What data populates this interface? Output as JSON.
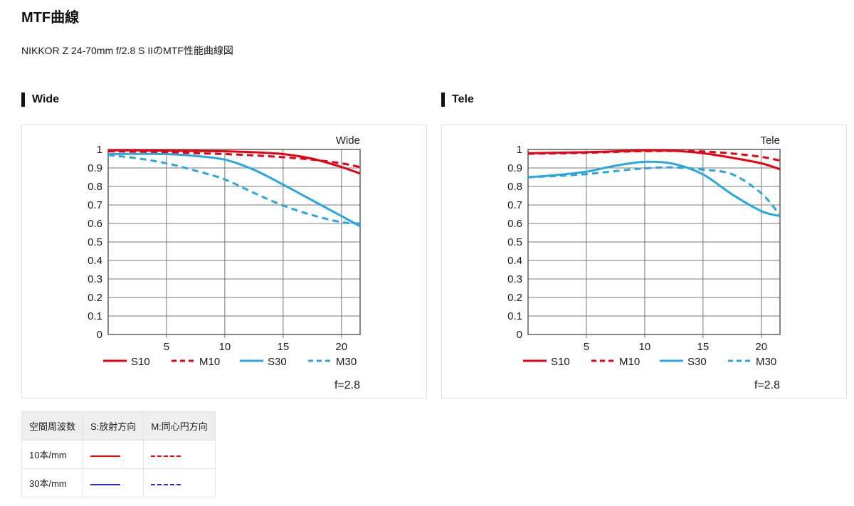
{
  "page": {
    "title": "MTF曲線",
    "subtitle": "NIKKOR Z 24-70mm f/2.8 S IIのMTF性能曲線図"
  },
  "colors": {
    "chart_red": "#e60012",
    "chart_blue": "#29a7e0",
    "table_red": "#ff0000",
    "table_blue": "#2b2be0",
    "grid": "#787878",
    "axis": "#5f5f5f",
    "panel_border": "#e2e2e2",
    "heading_bar": "#111111"
  },
  "sections": [
    {
      "heading": "Wide"
    },
    {
      "heading": "Tele"
    }
  ],
  "chart_data": [
    {
      "type": "line",
      "title": "Wide",
      "annotation": "f=2.8",
      "xlim": [
        0,
        21.6
      ],
      "ylim": [
        0,
        1
      ],
      "x_ticks": [
        5,
        10,
        15,
        20
      ],
      "y_ticks": [
        0,
        0.1,
        0.2,
        0.3,
        0.4,
        0.5,
        0.6,
        0.7,
        0.8,
        0.9,
        1
      ],
      "y_tick_labels": [
        "0",
        "0.1",
        "0.2",
        "0.3",
        "0.4",
        "0.5",
        "0.6",
        "0.7",
        "0.8",
        "0.9",
        "1"
      ],
      "grid": true,
      "legend_position": "bottom",
      "x": [
        0,
        2.5,
        5,
        7.5,
        10,
        12.5,
        15,
        17.5,
        20,
        21.6
      ],
      "series": [
        {
          "name": "S10",
          "color": "#e60012",
          "dashed": false,
          "values": [
            0.995,
            0.995,
            0.993,
            0.992,
            0.99,
            0.985,
            0.975,
            0.95,
            0.905,
            0.87
          ]
        },
        {
          "name": "M10",
          "color": "#e60012",
          "dashed": true,
          "values": [
            0.99,
            0.988,
            0.985,
            0.98,
            0.975,
            0.968,
            0.958,
            0.945,
            0.925,
            0.905
          ]
        },
        {
          "name": "S30",
          "color": "#29a7e0",
          "dashed": false,
          "values": [
            0.975,
            0.976,
            0.975,
            0.965,
            0.945,
            0.89,
            0.81,
            0.725,
            0.64,
            0.585
          ]
        },
        {
          "name": "M30",
          "color": "#29a7e0",
          "dashed": true,
          "values": [
            0.97,
            0.952,
            0.925,
            0.885,
            0.838,
            0.765,
            0.697,
            0.645,
            0.607,
            0.6
          ]
        }
      ]
    },
    {
      "type": "line",
      "title": "Tele",
      "annotation": "f=2.8",
      "xlim": [
        0,
        21.6
      ],
      "ylim": [
        0,
        1
      ],
      "x_ticks": [
        5,
        10,
        15,
        20
      ],
      "y_ticks": [
        0,
        0.1,
        0.2,
        0.3,
        0.4,
        0.5,
        0.6,
        0.7,
        0.8,
        0.9,
        1
      ],
      "y_tick_labels": [
        "0",
        "0.1",
        "0.2",
        "0.3",
        "0.4",
        "0.5",
        "0.6",
        "0.7",
        "0.8",
        "0.9",
        "1"
      ],
      "grid": true,
      "legend_position": "bottom",
      "x": [
        0,
        2.5,
        5,
        7.5,
        10,
        12.5,
        15,
        17.5,
        20,
        21.6
      ],
      "series": [
        {
          "name": "S10",
          "color": "#e60012",
          "dashed": false,
          "values": [
            0.98,
            0.982,
            0.985,
            0.99,
            0.995,
            0.993,
            0.98,
            0.955,
            0.925,
            0.893
          ]
        },
        {
          "name": "M10",
          "color": "#e60012",
          "dashed": true,
          "values": [
            0.977,
            0.979,
            0.982,
            0.987,
            0.991,
            0.992,
            0.989,
            0.978,
            0.96,
            0.94
          ]
        },
        {
          "name": "S30",
          "color": "#29a7e0",
          "dashed": false,
          "values": [
            0.85,
            0.862,
            0.88,
            0.912,
            0.933,
            0.922,
            0.865,
            0.757,
            0.667,
            0.64
          ]
        },
        {
          "name": "M30",
          "color": "#29a7e0",
          "dashed": true,
          "values": [
            0.85,
            0.857,
            0.867,
            0.883,
            0.898,
            0.903,
            0.891,
            0.866,
            0.763,
            0.645
          ]
        }
      ]
    }
  ],
  "table": {
    "headers": [
      "空間周波数",
      "S:放射方向",
      "M:同心円方向"
    ],
    "rows": [
      {
        "label": "10本/mm",
        "s_line": "red_solid",
        "m_line": "red_dashed"
      },
      {
        "label": "30本/mm",
        "s_line": "blue_solid",
        "m_line": "blue_dashed"
      }
    ]
  },
  "line_styles": {
    "red_solid": {
      "color": "#ff0000",
      "dash": ""
    },
    "red_dashed": {
      "color": "#ff0000",
      "dash": "6 3"
    },
    "blue_solid": {
      "color": "#2b2be0",
      "dash": ""
    },
    "blue_dashed": {
      "color": "#2b2be0",
      "dash": "6 3"
    }
  }
}
